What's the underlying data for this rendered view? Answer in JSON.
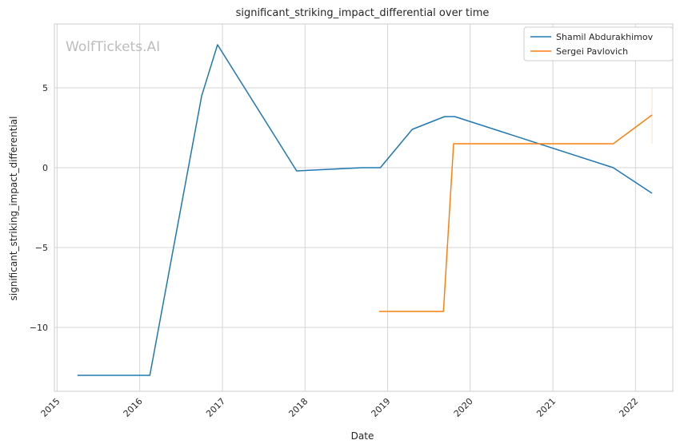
{
  "chart_data": {
    "type": "line",
    "title": "significant_striking_impact_differential over time",
    "xlabel": "Date",
    "ylabel": "significant_striking_impact_differential",
    "watermark": "WolfTickets.AI",
    "x_ticks": [
      "2015",
      "2016",
      "2017",
      "2018",
      "2019",
      "2020",
      "2021",
      "2022"
    ],
    "y_ticks": [
      "−10",
      "−5",
      "0",
      "5"
    ],
    "y_tick_values": [
      -10,
      -5,
      0,
      5
    ],
    "ylim": [
      -14,
      9
    ],
    "xlim": [
      "2014-12-20",
      "2022-06-15"
    ],
    "grid": true,
    "legend_position": "top-right",
    "series": [
      {
        "name": "Shamil Abdurakhimov",
        "color": "#1f77b4",
        "points": [
          [
            "2015-04-01",
            -13.0
          ],
          [
            "2016-02-15",
            -13.0
          ],
          [
            "2016-10-01",
            4.5
          ],
          [
            "2016-12-10",
            7.7
          ],
          [
            "2017-11-25",
            -0.2
          ],
          [
            "2018-09-10",
            0.0
          ],
          [
            "2018-11-30",
            0.0
          ],
          [
            "2019-04-20",
            2.4
          ],
          [
            "2019-09-10",
            3.2
          ],
          [
            "2019-10-25",
            3.2
          ],
          [
            "2021-09-25",
            0.0
          ],
          [
            "2022-03-15",
            -1.6
          ]
        ]
      },
      {
        "name": "Sergei Pavlovich",
        "color": "#ff7f0e",
        "points": [
          [
            "2018-11-25",
            -9.0
          ],
          [
            "2019-09-05",
            -9.0
          ],
          [
            "2019-10-20",
            1.5
          ],
          [
            "2021-09-25",
            1.5
          ],
          [
            "2022-03-15",
            3.3
          ]
        ],
        "error_band": {
          "x": "2022-03-15",
          "low": 1.5,
          "high": 5.0
        }
      }
    ]
  }
}
